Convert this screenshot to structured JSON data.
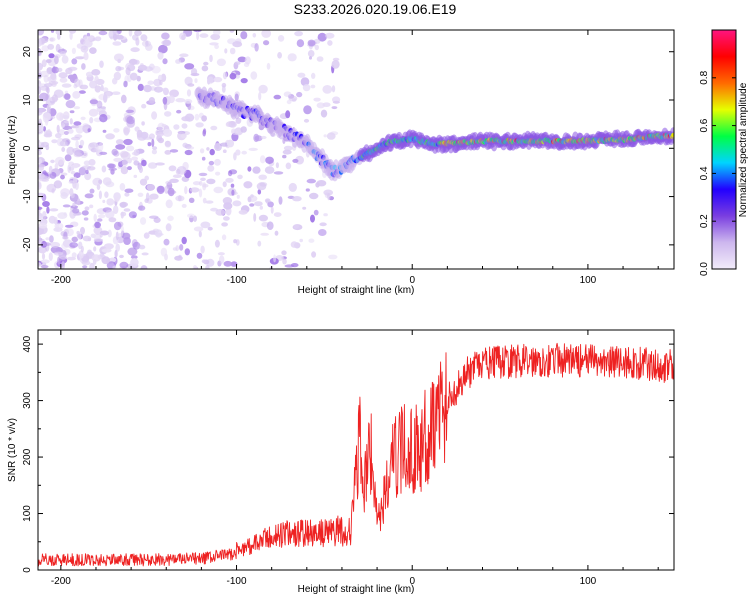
{
  "title": "S233.2026.020.19.06.E19",
  "chart_data": [
    {
      "type": "heatmap",
      "xlabel": "Height of straight line (km)",
      "ylabel": "Frequency (Hz)",
      "xlim": [
        -213,
        149
      ],
      "ylim": [
        -25,
        24.5
      ],
      "xticks": [
        -200,
        -100,
        0,
        100
      ],
      "yticks": [
        -20,
        -10,
        0,
        10,
        20
      ],
      "ridge": {
        "x": [
          -122,
          -110,
          -100,
          -90,
          -80,
          -70,
          -60,
          -55,
          -50,
          -45,
          -40,
          -35,
          -30,
          -25,
          -20,
          -15,
          -10,
          -5,
          0,
          10,
          20,
          40,
          60,
          80,
          100,
          120,
          140,
          149
        ],
        "y": [
          11,
          10,
          8,
          7,
          5,
          3,
          1,
          -1,
          -3,
          -5,
          -4,
          -3,
          -2,
          -1,
          0,
          1,
          1.5,
          1.5,
          2,
          1,
          1,
          1.5,
          1.5,
          1.5,
          1.5,
          1.8,
          2.5,
          2.5
        ]
      },
      "colorbar": {
        "label": "Normalized spectral amplitude",
        "ticks": [
          0.0,
          0.2,
          0.4,
          0.6,
          0.8
        ],
        "range": [
          0,
          1
        ],
        "colors": [
          "#f2ecfa",
          "#cdb7ee",
          "#7a3ee0",
          "#2200ff",
          "#00d4ff",
          "#00ff44",
          "#e6ff00",
          "#ff6a00",
          "#ff0000",
          "#ff1480"
        ]
      }
    },
    {
      "type": "line",
      "xlabel": "Height of straight line (km)",
      "ylabel": "SNR (10 * v/v)",
      "xlim": [
        -213,
        149
      ],
      "ylim": [
        0,
        425
      ],
      "xticks": [
        -200,
        -100,
        0,
        100
      ],
      "yticks": [
        0,
        100,
        200,
        300,
        400
      ],
      "color": "#ee2222",
      "envelope": {
        "x": [
          -213,
          -150,
          -120,
          -100,
          -90,
          -80,
          -70,
          -60,
          -50,
          -40,
          -35,
          -32,
          -30,
          -27,
          -25,
          -22,
          -20,
          -17,
          -15,
          -10,
          -5,
          0,
          5,
          10,
          15,
          20,
          25,
          30,
          40,
          50,
          60,
          80,
          100,
          120,
          149
        ],
        "y": [
          18,
          18,
          20,
          30,
          38,
          50,
          55,
          55,
          55,
          60,
          70,
          160,
          230,
          140,
          240,
          170,
          95,
          100,
          150,
          200,
          215,
          210,
          220,
          250,
          280,
          300,
          320,
          345,
          365,
          368,
          370,
          372,
          370,
          368,
          360
        ]
      }
    }
  ]
}
